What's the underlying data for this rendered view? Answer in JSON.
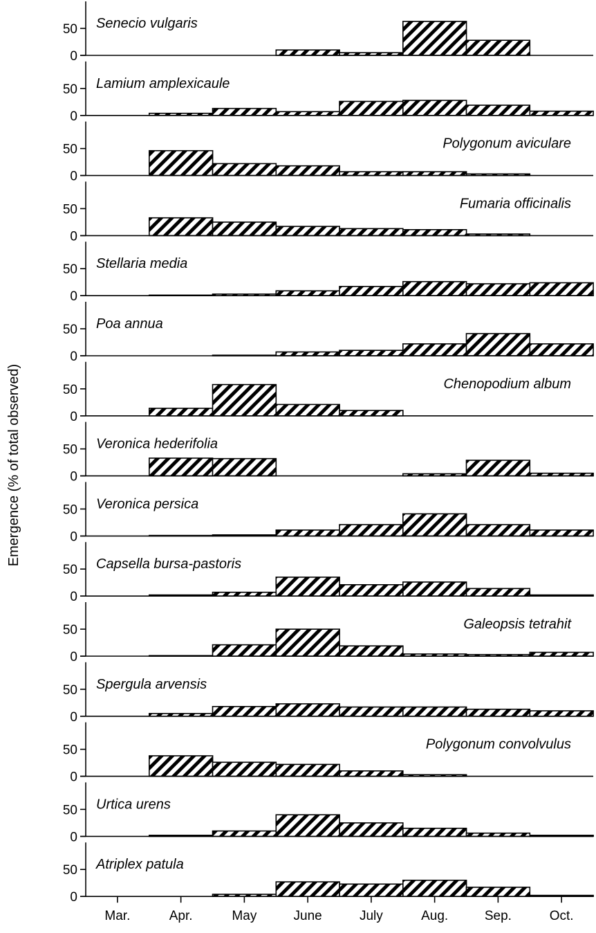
{
  "chart_data": {
    "type": "bar",
    "ylabel": "Emergence (% of total observed)",
    "categories": [
      "Mar.",
      "Apr.",
      "May",
      "June",
      "July",
      "Aug.",
      "Sep.",
      "Oct."
    ],
    "ylim": [
      0,
      100
    ],
    "yticks": [
      0,
      50
    ],
    "bar_fill": "diagonal-hatch",
    "colors": {
      "bar_stroke": "#000000",
      "hatch": "#000000",
      "background": "#ffffff"
    },
    "panels": [
      {
        "name": "Senecio vulgaris",
        "label_position": "left",
        "values": [
          0,
          0,
          0,
          10,
          5,
          63,
          28,
          0
        ]
      },
      {
        "name": "Lamium amplexicaule",
        "label_position": "left",
        "values": [
          0,
          4,
          13,
          7,
          26,
          28,
          19,
          8
        ]
      },
      {
        "name": "Polygonum aviculare",
        "label_position": "right",
        "values": [
          0,
          46,
          22,
          18,
          7,
          7,
          3,
          0
        ]
      },
      {
        "name": "Fumaria officinalis",
        "label_position": "right",
        "values": [
          0,
          33,
          25,
          17,
          13,
          11,
          3,
          0
        ]
      },
      {
        "name": "Stellaria media",
        "label_position": "left",
        "values": [
          0,
          1,
          3,
          9,
          17,
          26,
          22,
          24
        ]
      },
      {
        "name": "Poa annua",
        "label_position": "left",
        "values": [
          0,
          0,
          1,
          7,
          10,
          22,
          41,
          22
        ]
      },
      {
        "name": "Chenopodium album",
        "label_position": "right",
        "values": [
          0,
          14,
          58,
          21,
          10,
          0,
          0,
          0
        ]
      },
      {
        "name": "Veronica hederifolia",
        "label_position": "left",
        "values": [
          0,
          33,
          32,
          0,
          0,
          4,
          29,
          5
        ]
      },
      {
        "name": "Veronica persica",
        "label_position": "left",
        "values": [
          0,
          1,
          2,
          11,
          21,
          41,
          21,
          11
        ]
      },
      {
        "name": "Capsella bursa-pastoris",
        "label_position": "left",
        "values": [
          0,
          2,
          7,
          35,
          21,
          26,
          14,
          2
        ]
      },
      {
        "name": "Galeopsis tetrahit",
        "label_position": "right",
        "values": [
          0,
          1,
          21,
          50,
          19,
          4,
          3,
          7
        ]
      },
      {
        "name": "Spergula arvensis",
        "label_position": "left",
        "values": [
          0,
          5,
          18,
          23,
          17,
          17,
          13,
          10
        ]
      },
      {
        "name": "Polygonum convolvulus",
        "label_position": "right",
        "values": [
          0,
          38,
          26,
          22,
          10,
          3,
          0,
          0
        ]
      },
      {
        "name": "Urtica urens",
        "label_position": "left",
        "values": [
          0,
          2,
          10,
          40,
          25,
          15,
          6,
          2
        ]
      },
      {
        "name": "Atriplex patula",
        "label_position": "left",
        "values": [
          0,
          0,
          4,
          27,
          23,
          30,
          17,
          2
        ]
      }
    ]
  }
}
